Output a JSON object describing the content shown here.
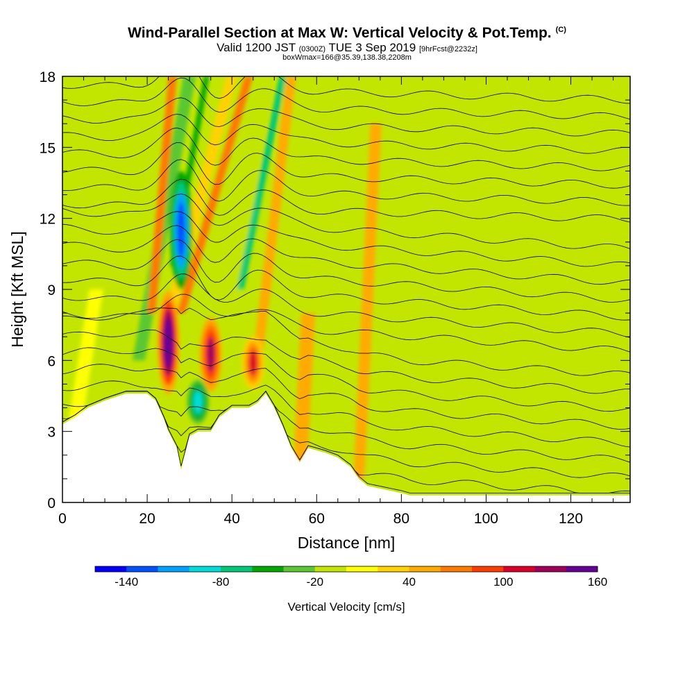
{
  "header": {
    "title": "Wind-Parallel Section at Max W: Vertical Velocity & Pot.Temp.",
    "title_badge": "(C)",
    "valid_prefix": "Valid 1200 JST",
    "valid_utc": "(0300Z)",
    "valid_date": "TUE 3 Sep 2019",
    "forecast": "[9hrFcst@2232z]",
    "box_info": "boxWmax=166@35.39,138.38,2208m"
  },
  "colorbar": {
    "label": "Vertical Velocity [cm/s]",
    "tick_labels": [
      "-140",
      "-80",
      "-20",
      "40",
      "100",
      "160"
    ],
    "colors": [
      "#0000ff",
      "#0050ff",
      "#00a0ff",
      "#00dcdc",
      "#00c878",
      "#00a800",
      "#5ac832",
      "#c3e600",
      "#ffff00",
      "#ffd200",
      "#ffaa00",
      "#ff7800",
      "#ff3c00",
      "#dc0028",
      "#a0005a",
      "#640096"
    ]
  },
  "chart_data": {
    "type": "heatmap",
    "xlabel": "Distance [nm]",
    "ylabel": "Height [Kft MSL]",
    "xlim": [
      0,
      134
    ],
    "ylim": [
      0,
      18
    ],
    "x_ticks": [
      0,
      20,
      40,
      60,
      80,
      100,
      120
    ],
    "y_ticks": [
      0,
      3,
      6,
      9,
      12,
      15,
      18
    ],
    "field": "Vertical Velocity [cm/s]",
    "color_levels": [
      -160,
      -140,
      -120,
      -100,
      -80,
      -60,
      -40,
      -20,
      0,
      20,
      40,
      60,
      80,
      100,
      120,
      140,
      160
    ],
    "contour_field": "Potential Temperature",
    "terrain_profile": [
      [
        0,
        3.3
      ],
      [
        3,
        3.6
      ],
      [
        6,
        4.0
      ],
      [
        10,
        4.3
      ],
      [
        15,
        4.6
      ],
      [
        20,
        4.6
      ],
      [
        22,
        4.3
      ],
      [
        24,
        3.5
      ],
      [
        25,
        3.0
      ],
      [
        27,
        2.3
      ],
      [
        28,
        1.4
      ],
      [
        30,
        2.8
      ],
      [
        32,
        3.0
      ],
      [
        35,
        3.0
      ],
      [
        37,
        3.6
      ],
      [
        40,
        4.0
      ],
      [
        44,
        4.0
      ],
      [
        46,
        4.2
      ],
      [
        48,
        4.6
      ],
      [
        50,
        4.0
      ],
      [
        52,
        3.2
      ],
      [
        54,
        2.3
      ],
      [
        56,
        1.7
      ],
      [
        58,
        2.3
      ],
      [
        62,
        2.1
      ],
      [
        65,
        1.9
      ],
      [
        68,
        1.5
      ],
      [
        70,
        1.0
      ],
      [
        72,
        0.7
      ],
      [
        80,
        0.4
      ],
      [
        82,
        0.3
      ],
      [
        84,
        0.3
      ],
      [
        134,
        0.3
      ]
    ],
    "updraft_cores": [
      {
        "x": 25,
        "z_base": 5.0,
        "z_top": 8.5,
        "w": 166
      },
      {
        "x": 35,
        "z_base": 5.0,
        "z_top": 7.5,
        "w": 130
      },
      {
        "x": 45,
        "z_base": 5.0,
        "z_top": 6.8,
        "w": 100
      }
    ],
    "downdraft_cores": [
      {
        "x": 28,
        "z_base": 9.5,
        "z_top": 13.5,
        "w": -140
      },
      {
        "x": 32,
        "z_base": 3.5,
        "z_top": 5.0,
        "w": -100
      }
    ],
    "grid": false
  }
}
